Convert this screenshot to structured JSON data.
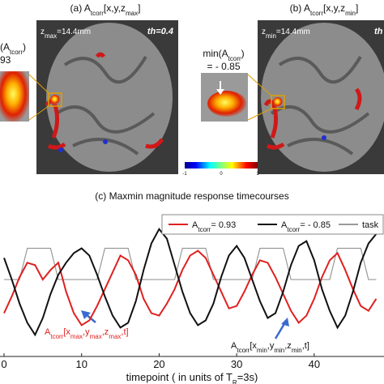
{
  "panels": {
    "a": {
      "title": [
        "(a) A",
        "tcorr",
        "[x,y,z",
        "max",
        "]"
      ],
      "depth": [
        "z",
        "max",
        "=14.4mm"
      ],
      "threshold": "th=0.4",
      "zoom_label": [
        "(A",
        "tcorr",
        ")"
      ],
      "zoom_value": "93"
    },
    "b": {
      "title": [
        "(b) A",
        "tcorr",
        "[x,y,z",
        "min",
        "]"
      ],
      "depth": [
        "z",
        "min",
        "=14.4mm"
      ],
      "threshold": "th",
      "zoom_label": [
        "min(A",
        "tcorr",
        ")"
      ],
      "zoom_value": "= - 0.85"
    },
    "colorbar": {
      "ticks": [
        -1,
        0,
        1
      ]
    }
  },
  "chart_data": {
    "type": "line",
    "title": "(c) Maxmin magnitude response timecourses",
    "x_label": [
      "timepoint ( in units of T",
      "R",
      "=3s)"
    ],
    "x": [
      0,
      1,
      2,
      3,
      4,
      5,
      6,
      7,
      8,
      9,
      10,
      11,
      12,
      13,
      14,
      15,
      16,
      17,
      18,
      19,
      20,
      21,
      22,
      23,
      24,
      25,
      26,
      27,
      28,
      29,
      30,
      31,
      32,
      33,
      34,
      35,
      36,
      37,
      38,
      39,
      40,
      41,
      42,
      43,
      44,
      45,
      46,
      47,
      48
    ],
    "xlim": [
      0,
      49
    ],
    "xticks": [
      0,
      10,
      20,
      30,
      40
    ],
    "ylim": [
      -3,
      3
    ],
    "series": [
      {
        "name": [
          "A",
          "tcorr",
          "= 0.93"
        ],
        "color": "#e02020",
        "values": [
          -1.2,
          -0.5,
          0.3,
          0.9,
          0.8,
          0.2,
          0.6,
          0.9,
          -0.3,
          -1.2,
          -1.7,
          -1.5,
          -0.9,
          -0.2,
          0.5,
          1.2,
          1.0,
          0.4,
          -0.6,
          -1.2,
          -1.3,
          -0.8,
          -0.2,
          0.6,
          1.2,
          1.4,
          1.1,
          0.4,
          -0.3,
          -1.0,
          -0.9,
          -0.3,
          0.4,
          1.0,
          0.9,
          0.3,
          -0.4,
          -1.1,
          -1.6,
          -1.3,
          -0.6,
          0.3,
          1.0,
          1.3,
          0.6,
          -0.2,
          -0.9,
          -1.1,
          -0.6
        ]
      },
      {
        "name": [
          "A",
          "tcorr",
          "= - 0.85"
        ],
        "color": "#111111",
        "values": [
          1.1,
          0.2,
          -0.8,
          -1.6,
          -2.1,
          -1.4,
          -0.4,
          0.4,
          0.9,
          1.3,
          1.5,
          1.2,
          0.4,
          -0.5,
          -1.3,
          -1.8,
          -1.6,
          -0.7,
          0.6,
          1.7,
          2.3,
          1.9,
          0.8,
          -0.3,
          -1.2,
          -1.7,
          -1.5,
          -0.8,
          0.3,
          1.2,
          1.6,
          1.1,
          0.2,
          -0.7,
          -1.4,
          -1.2,
          -0.3,
          0.8,
          1.6,
          1.8,
          1.0,
          -0.2,
          -1.1,
          -1.8,
          -1.3,
          -0.3,
          0.9,
          1.7,
          2.1
        ]
      },
      {
        "name": [
          "task"
        ],
        "color": "#999999",
        "values": [
          0.2,
          0.2,
          0.2,
          1.5,
          1.5,
          1.5,
          1.5,
          0.2,
          0.2,
          0.2,
          0.2,
          0.2,
          0.2,
          1.5,
          1.5,
          1.5,
          1.5,
          0.2,
          0.2,
          0.2,
          0.2,
          0.2,
          0.2,
          1.5,
          1.5,
          1.5,
          1.5,
          0.2,
          0.2,
          0.2,
          0.2,
          0.2,
          0.2,
          1.5,
          1.5,
          1.5,
          1.5,
          0.2,
          0.2,
          0.2,
          0.2,
          0.2,
          0.2,
          1.5,
          1.5,
          1.5,
          1.5,
          0.2,
          0.2
        ]
      }
    ],
    "annotations": [
      {
        "text": [
          "A",
          "tcorr",
          "[x",
          "max",
          ",y",
          "max",
          ",z",
          "max",
          ",t]"
        ],
        "color": "#e02020"
      },
      {
        "text": [
          "A",
          "tcorr",
          "[x",
          "min",
          ",y",
          "min",
          ",z",
          "min",
          ",t]"
        ],
        "color": "#111111"
      }
    ]
  }
}
